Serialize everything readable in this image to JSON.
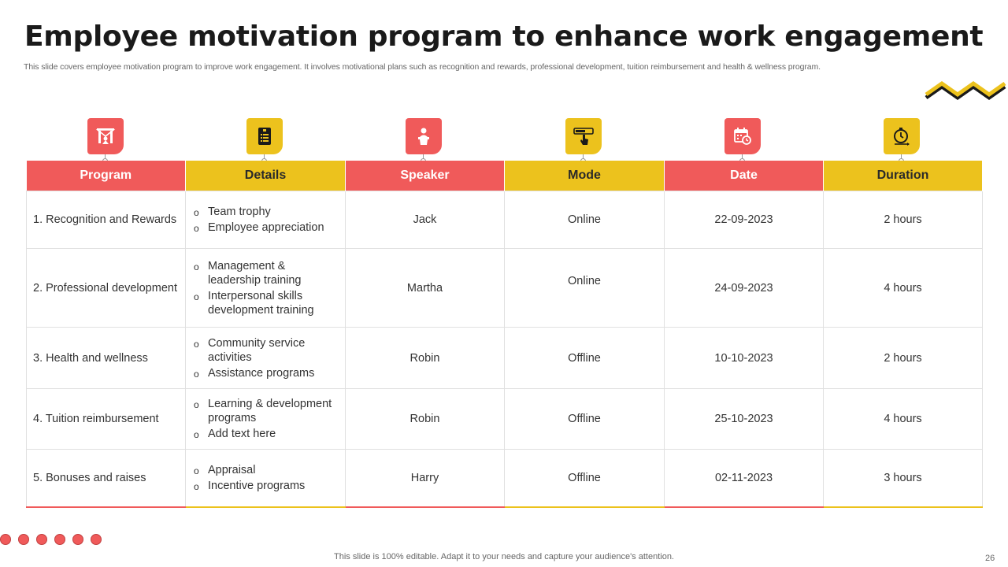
{
  "title": "Employee motivation program to enhance work engagement",
  "subtitle": "This slide covers employee motivation program to improve work engagement. It involves motivational plans such as  recognition and rewards, professional development, tuition reimbursement and health & wellness program.",
  "colors": {
    "red": "#f05a5a",
    "yellow": "#ecc21d"
  },
  "headers": [
    {
      "label": "Program",
      "icon": "presentation-board-icon",
      "color": "red"
    },
    {
      "label": "Details",
      "icon": "document-list-icon",
      "color": "yellow"
    },
    {
      "label": "Speaker",
      "icon": "speaker-podium-icon",
      "color": "red"
    },
    {
      "label": "Mode",
      "icon": "touch-screen-icon",
      "color": "yellow"
    },
    {
      "label": "Date",
      "icon": "calendar-clock-icon",
      "color": "red"
    },
    {
      "label": "Duration",
      "icon": "timer-icon",
      "color": "yellow"
    }
  ],
  "rows": [
    {
      "program": "1. Recognition and Rewards",
      "details": [
        "Team trophy",
        "Employee appreciation"
      ],
      "speaker": "Jack",
      "mode": "Online",
      "date": "22-09-2023",
      "duration": "2 hours"
    },
    {
      "program": "2. Professional development",
      "details": [
        "Management & leadership training",
        "Interpersonal skills development training"
      ],
      "speaker": "Martha",
      "mode": "Online",
      "date": "24-09-2023",
      "duration": "4 hours"
    },
    {
      "program": "3. Health and wellness",
      "details": [
        "Community service activities",
        "Assistance programs"
      ],
      "speaker": "Robin",
      "mode": "Offline",
      "date": "10-10-2023",
      "duration": "2 hours"
    },
    {
      "program": "4. Tuition reimbursement",
      "details": [
        "Learning & development programs",
        "Add text here"
      ],
      "speaker": "Robin",
      "mode": "Offline",
      "date": "25-10-2023",
      "duration": "4 hours"
    },
    {
      "program": "5. Bonuses and raises",
      "details": [
        "Appraisal",
        "Incentive programs"
      ],
      "speaker": "Harry",
      "mode": "Offline",
      "date": "02-11-2023",
      "duration": "3 hours"
    }
  ],
  "footer": "This slide is 100% editable. Adapt it to your needs and capture your audience's attention.",
  "page_number": "26"
}
